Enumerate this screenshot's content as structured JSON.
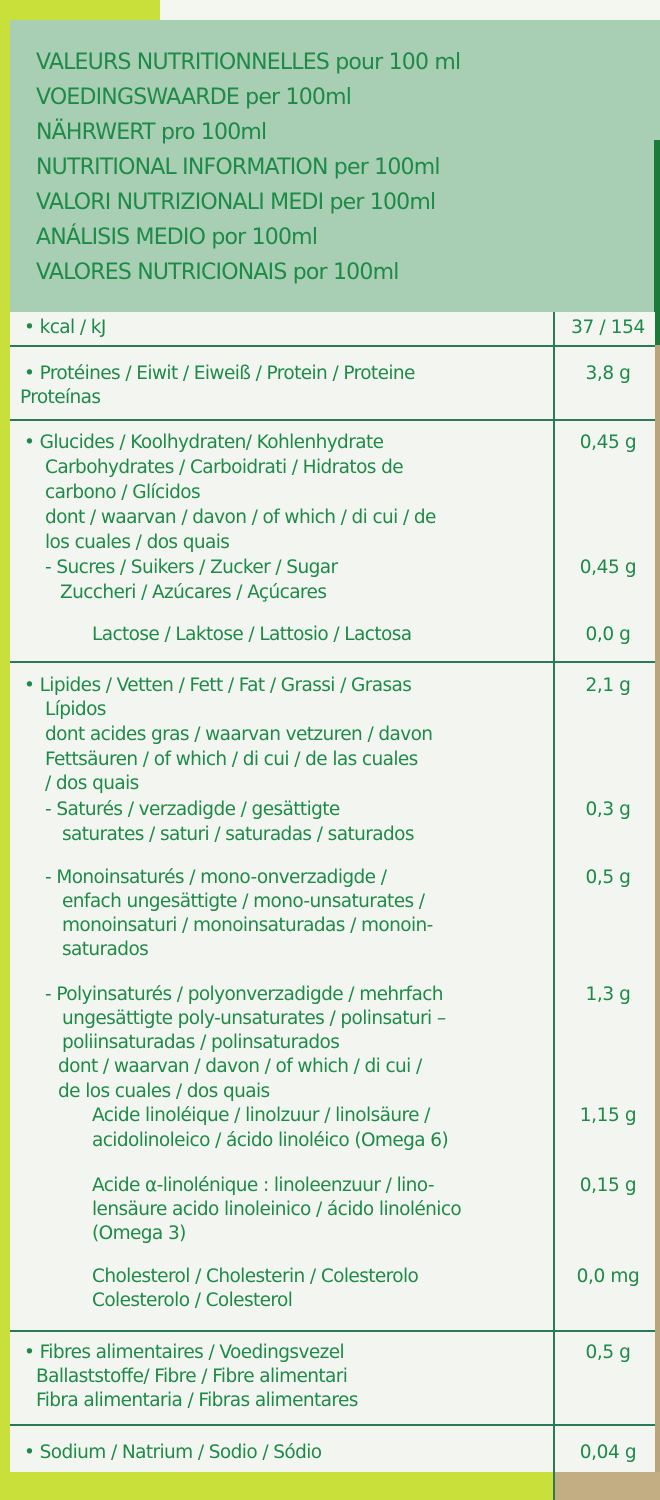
{
  "header": {
    "lines": [
      "VALEURS NUTRITIONNELLES pour 100 ml",
      "VOEDINGSWAARDE per 100ml",
      "NÄHRWERT pro 100ml",
      "NUTRITIONAL INFORMATION per 100ml",
      "VALORI NUTRIZIONALI MEDI per 100ml",
      "ANÁLISIS MEDIO por 100ml",
      "VALORES NUTRICIONAIS por 100ml"
    ]
  },
  "rows": {
    "energy": {
      "lines": [
        "• kcal / kJ"
      ],
      "value": "37 / 154"
    },
    "protein": {
      "lines": [
        "• Protéines / Eiwit / Eiweiß / Protein / Proteine",
        "Proteínas"
      ],
      "value": "3,8 g"
    },
    "carbs": {
      "lines": [
        "• Glucides / Koolhydraten/ Kohlenhydrate",
        "Carbohydrates / Carboidrati / Hidratos de",
        "carbono / Glícidos",
        "dont / waarvan / davon / of which / di cui / de",
        "los cuales / dos quais"
      ],
      "value": "0,45 g",
      "sugars": {
        "lines": [
          "- Sucres / Suikers / Zucker / Sugar",
          "Zuccheri / Azúcares / Açúcares"
        ],
        "value": "0,45 g"
      },
      "lactose": {
        "lines": [
          "Lactose / Laktose / Lattosio / Lactosa"
        ],
        "value": "0,0 g"
      }
    },
    "fat": {
      "lines": [
        "• Lipides / Vetten / Fett / Fat / Grassi / Grasas",
        "Lípidos",
        "dont acides gras / waarvan vetzuren / davon",
        "Fettsäuren / of which / di cui / de las cuales",
        "/ dos quais"
      ],
      "value": "2,1 g",
      "saturated": {
        "lines": [
          "- Saturés / verzadigde / gesättigte",
          "saturates / saturi / saturadas / saturados"
        ],
        "value": "0,3 g"
      },
      "mono": {
        "lines": [
          "- Monoinsaturés / mono-onverzadigde /",
          "enfach ungesättigte / mono-unsaturates /",
          "monoinsaturi / monoinsaturadas / monoin-",
          "saturados"
        ],
        "value": "0,5 g"
      },
      "poly": {
        "lines": [
          "- Polyinsaturés / polyonverzadigde / mehrfach",
          "ungesättigte poly-unsaturates / polinsaturi –",
          "poliinsaturadas / polinsaturados",
          "dont / waarvan / davon / of which / di cui /",
          "de los cuales / dos quais"
        ],
        "value": "1,3 g"
      },
      "linoleic": {
        "lines": [
          "Acide linoléique / linolzuur / linolsäure /",
          "acidolinoleico / ácido linoléico (Omega 6)"
        ],
        "value": "1,15 g"
      },
      "alpha_linolenic": {
        "lines": [
          "Acide α-linolénique : linoleenzuur / lino-",
          "lensäure acido linoleinico / ácido linolénico",
          "(Omega 3)"
        ],
        "value": "0,15 g"
      },
      "cholesterol": {
        "lines": [
          "Cholesterol / Cholesterin / Colesterolo",
          "Colesterolo / Colesterol"
        ],
        "value": "0,0 mg"
      }
    },
    "fibre": {
      "lines": [
        "• Fibres alimentaires / Voedingsvezel",
        "Ballaststoffe/ Fibre / Fibre alimentari",
        "Fibra alimentaria / Fibras alimentares"
      ],
      "value": "0,5 g"
    },
    "sodium": {
      "lines": [
        "• Sodium / Natrium / Sodio / Sódio"
      ],
      "value": "0,04 g"
    }
  },
  "colors": {
    "text": "#1d8a48",
    "header_bg": "#a8cfb3",
    "table_bg": "#f3f5f0",
    "lime": "#c9df3a",
    "rule": "#2c7a55"
  }
}
